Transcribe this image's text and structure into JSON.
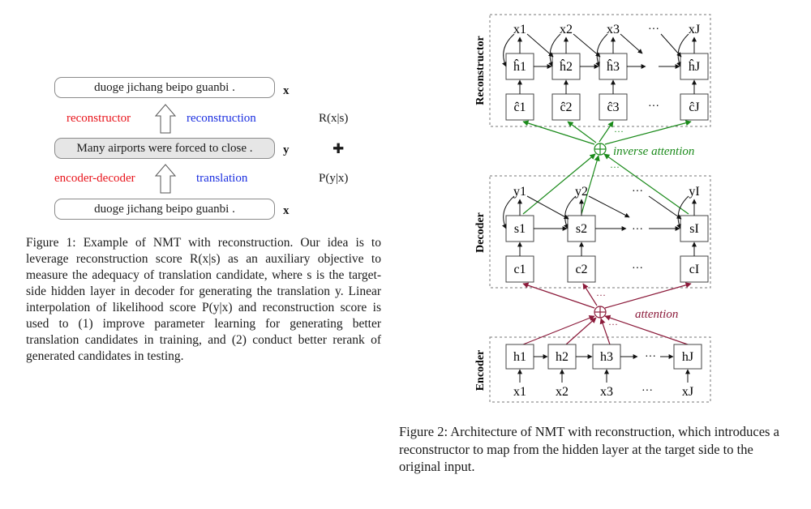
{
  "fig1": {
    "source_sentence": "duoge jichang beipo guanbi .",
    "target_sentence": "Many airports were forced to close .",
    "var_x": "x",
    "var_y": "y",
    "reconstructor_label": "reconstructor",
    "reconstruction_label": "reconstruction",
    "encoder_decoder_label": "encoder-decoder",
    "translation_label": "translation",
    "score_r": "R(x|s)",
    "score_p": "P(y|x)",
    "plus_sign": "✚",
    "caption": "Figure 1: Example of NMT with reconstruction. Our idea is to leverage reconstruction score R(x|s) as an auxiliary objective to measure the adequacy of translation candidate, where s is the target-side hidden layer in decoder for generating the translation y. Linear interpolation of likelihood score P(y|x) and reconstruction score is used to (1) improve parameter learning for generating better translation candidates in training, and (2) conduct better rerank of generated candidates in testing."
  },
  "fig2": {
    "section_labels": [
      "Reconstructor",
      "Decoder",
      "Encoder"
    ],
    "inverse_attention_label": "inverse attention",
    "attention_label": "attention",
    "ellipsis": "···",
    "reconstructor": {
      "outputs": [
        "x1",
        "x2",
        "x3",
        "xJ"
      ],
      "hidden": [
        "ĥ1",
        "ĥ2",
        "ĥ3",
        "ĥJ"
      ],
      "context": [
        "ĉ1",
        "ĉ2",
        "ĉ3",
        "ĉJ"
      ]
    },
    "decoder": {
      "outputs": [
        "y1",
        "y2",
        "yI"
      ],
      "hidden": [
        "s1",
        "s2",
        "sI"
      ],
      "context": [
        "c1",
        "c2",
        "cI"
      ]
    },
    "encoder": {
      "hidden": [
        "h1",
        "h2",
        "h3",
        "hJ"
      ],
      "inputs": [
        "x1",
        "x2",
        "x3",
        "xJ"
      ]
    },
    "colors": {
      "inverse_attention": "#1a8a1a",
      "attention": "#8b1a3a"
    },
    "caption": "Figure 2: Architecture of NMT with reconstruction, which introduces a reconstructor to map from the hidden layer at the target side to the original input."
  }
}
